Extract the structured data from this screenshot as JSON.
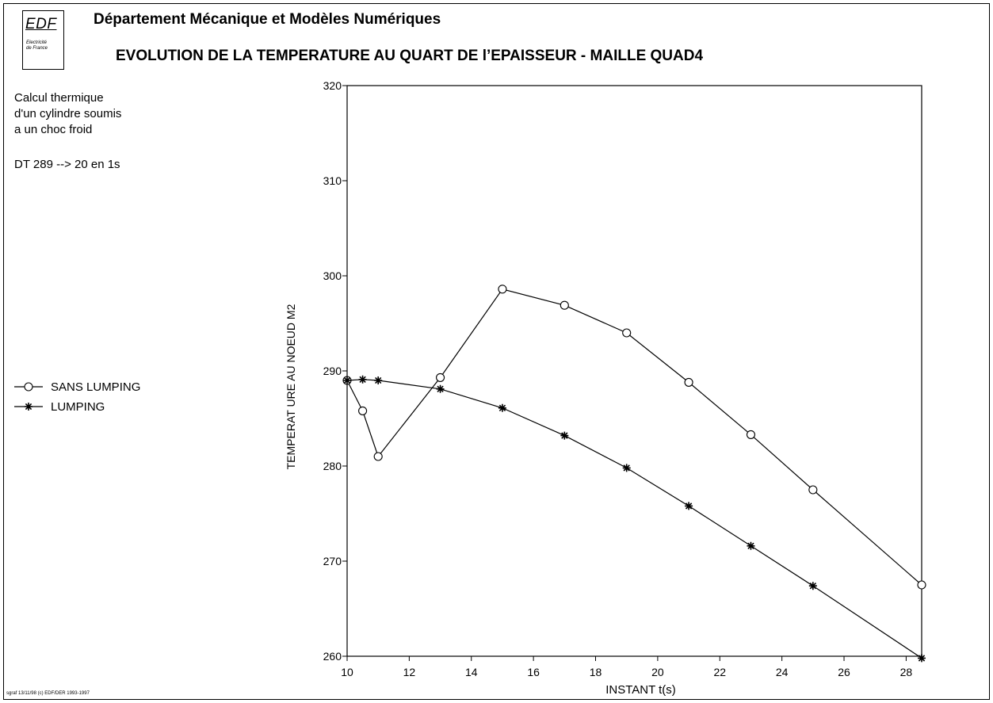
{
  "header": {
    "logo_text": "EDF",
    "logo_sub_1": "Electricité",
    "logo_sub_2": "de France",
    "department": "Département Mécanique et Modèles Numériques",
    "title": "EVOLUTION DE LA TEMPERATURE AU QUART DE l’EPAISSEUR - MAILLE QUAD4"
  },
  "description": {
    "line1": "Calcul thermique",
    "line2": "d'un cylindre soumis",
    "line3": "a un choc froid",
    "line4": "DT 289 --> 20 en 1s"
  },
  "footer": "sgraf 13/11/98 (c) EDF/DER 1993-1997",
  "chart_data": {
    "type": "line",
    "xlabel": "INSTANT t(s)",
    "ylabel": "TEMPERAT URE AU NOEUD M2",
    "xlim": [
      10,
      28.5
    ],
    "ylim": [
      260,
      320
    ],
    "x_ticks": [
      10,
      12,
      14,
      16,
      18,
      20,
      22,
      24,
      26,
      28
    ],
    "y_ticks": [
      260,
      270,
      280,
      290,
      300,
      310,
      320
    ],
    "legend_position": "left",
    "series": [
      {
        "name": "SANS LUMPING",
        "marker": "circle",
        "x": [
          10,
          10.5,
          11,
          13,
          15,
          17,
          19,
          21,
          23,
          25,
          28.5
        ],
        "y": [
          289,
          285.8,
          281,
          289.3,
          298.6,
          296.9,
          294,
          288.8,
          283.3,
          277.5,
          267.5
        ]
      },
      {
        "name": "LUMPING",
        "marker": "asterisk",
        "x": [
          10,
          10.5,
          11,
          13,
          15,
          17,
          19,
          21,
          23,
          25,
          28.5
        ],
        "y": [
          289,
          289.1,
          289,
          288.1,
          286.1,
          283.2,
          279.8,
          275.8,
          271.6,
          267.4,
          259.8
        ]
      }
    ]
  }
}
